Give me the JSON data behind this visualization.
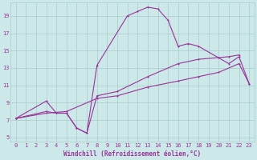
{
  "xlabel": "Windchill (Refroidissement éolien,°C)",
  "background_color": "#cce8e8",
  "grid_color": "#aacccc",
  "line_color": "#993399",
  "xlim": [
    -0.5,
    23.5
  ],
  "ylim": [
    4.5,
    20.5
  ],
  "xticks": [
    0,
    1,
    2,
    3,
    4,
    5,
    6,
    7,
    8,
    9,
    10,
    11,
    12,
    13,
    14,
    15,
    16,
    17,
    18,
    19,
    20,
    21,
    22,
    23
  ],
  "yticks": [
    5,
    7,
    9,
    11,
    13,
    15,
    17,
    19
  ],
  "line1_x": [
    0,
    3,
    4,
    5,
    6,
    7,
    8,
    11,
    12,
    13,
    14,
    15,
    16,
    17,
    18,
    21,
    22,
    23
  ],
  "line1_y": [
    7.2,
    9.2,
    7.8,
    7.8,
    6.1,
    5.5,
    13.3,
    19.0,
    19.5,
    20.0,
    19.8,
    18.5,
    15.5,
    15.8,
    15.5,
    13.5,
    14.3,
    11.2
  ],
  "line2_x": [
    0,
    3,
    4,
    5,
    6,
    7,
    8,
    10,
    13,
    16,
    18,
    20,
    21,
    22
  ],
  "line2_y": [
    7.2,
    8.0,
    7.8,
    7.8,
    6.1,
    5.5,
    9.8,
    10.3,
    12.0,
    13.5,
    14.0,
    14.2,
    14.3,
    14.5
  ],
  "line3_x": [
    0,
    3,
    5,
    8,
    10,
    13,
    16,
    18,
    20,
    22,
    23
  ],
  "line3_y": [
    7.2,
    7.8,
    8.0,
    9.5,
    9.8,
    10.8,
    11.5,
    12.0,
    12.5,
    13.5,
    11.2
  ]
}
